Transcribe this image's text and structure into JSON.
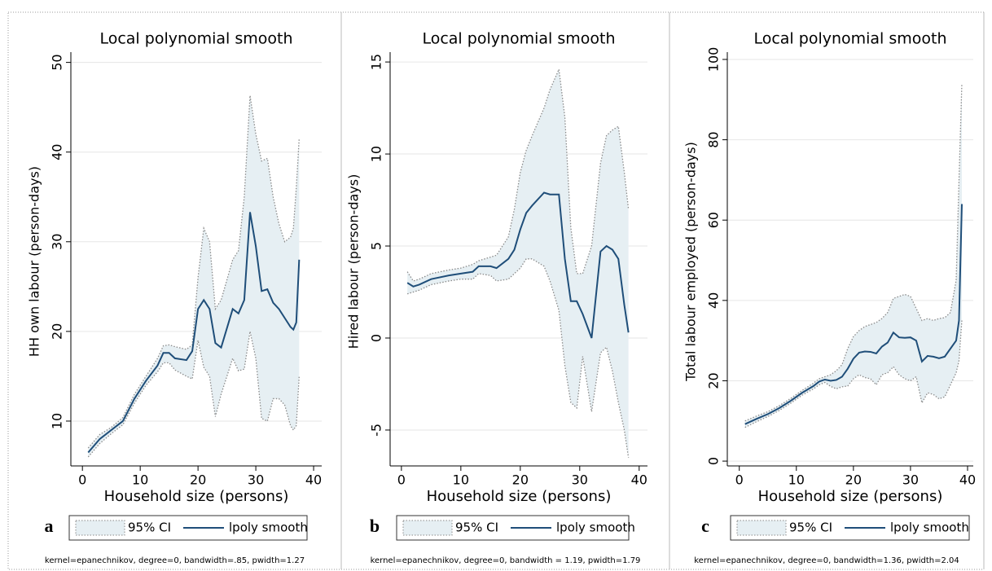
{
  "chart_data": [
    {
      "type": "line",
      "title": "Local polynomial smooth",
      "xlabel": "Household size (persons)",
      "ylabel": "HH own labour (person-days)",
      "panel_label": "a",
      "note": "kernel=epanechnikov, degree=0, bandwidth=.85, pwidth=1.27",
      "x": [
        1,
        3,
        5,
        7,
        9,
        11,
        13,
        14,
        15,
        16,
        18,
        19,
        20,
        21,
        22,
        23,
        24,
        26,
        27,
        28,
        29,
        30,
        31,
        32,
        33,
        34,
        35,
        36,
        36.5,
        37,
        37.5
      ],
      "series": [
        {
          "name": "95% CI",
          "color": "#e6eff3",
          "line_color": "#8a8a8a",
          "upper": [
            7,
            8.5,
            9.3,
            10.4,
            13,
            15,
            17,
            18.4,
            18.5,
            18.3,
            18,
            18.5,
            26,
            31.5,
            30,
            22.5,
            23.5,
            28,
            29,
            35,
            46.3,
            42,
            39,
            39.3,
            35,
            32,
            30,
            30.5,
            31.5,
            36,
            41.5
          ],
          "lower": [
            6,
            7.5,
            8.6,
            9.6,
            12,
            14,
            15.5,
            16.5,
            16.5,
            15.7,
            15,
            14.7,
            19,
            16,
            15,
            10.5,
            13,
            17,
            15.6,
            15.8,
            20,
            17,
            10.3,
            10,
            12.5,
            12.5,
            11.8,
            9.5,
            9,
            9.5,
            15
          ]
        },
        {
          "name": "lpoly smooth",
          "color": "#1f4e79",
          "values": [
            6.5,
            8,
            9,
            10,
            12.5,
            14.5,
            16.2,
            17.6,
            17.6,
            17,
            16.8,
            17.8,
            22.5,
            23.5,
            22.5,
            18.7,
            18.2,
            22.5,
            22,
            23.5,
            33.3,
            29.5,
            24.5,
            24.7,
            23.2,
            22.5,
            21.5,
            20.5,
            20.2,
            21,
            28
          ]
        }
      ],
      "xlim": [
        -2,
        41.4
      ],
      "ylim": [
        5,
        50.6
      ],
      "xticks": [
        0,
        10,
        20,
        30,
        40
      ],
      "yticks": [
        10,
        20,
        30,
        40,
        50
      ],
      "grid": true
    },
    {
      "type": "line",
      "title": "Local polynomial smooth",
      "xlabel": "Household size (persons)",
      "ylabel": "Hired labour (person-days)",
      "panel_label": "b",
      "note": "kernel=epanechnikov, degree=0, bandwidth = 1.19, pwidth=1.79",
      "x": [
        1,
        2,
        3,
        5,
        8,
        10,
        12,
        13,
        15,
        16,
        18,
        19,
        20,
        21,
        22,
        24,
        25,
        26.5,
        27.5,
        28.5,
        29.5,
        30.5,
        32,
        33.5,
        34.5,
        35.5,
        36.5,
        37.5,
        38.2
      ],
      "series": [
        {
          "name": "95% CI",
          "color": "#e6eff3",
          "line_color": "#8a8a8a",
          "upper": [
            3.6,
            3.1,
            3.2,
            3.5,
            3.7,
            3.8,
            4,
            4.2,
            4.4,
            4.5,
            5.5,
            7,
            9,
            10.2,
            11,
            12.5,
            13.5,
            14.6,
            12,
            6,
            3.5,
            3.5,
            5,
            9.5,
            11,
            11.3,
            11.5,
            9,
            7
          ],
          "lower": [
            2.4,
            2.5,
            2.6,
            2.9,
            3.1,
            3.2,
            3.2,
            3.5,
            3.4,
            3.1,
            3.2,
            3.5,
            3.8,
            4.3,
            4.3,
            3.9,
            3.1,
            1.5,
            -1.5,
            -3.5,
            -3.8,
            -1,
            -4,
            -0.8,
            -0.5,
            -1.8,
            -3.5,
            -5,
            -6.5
          ]
        },
        {
          "name": "lpoly smooth",
          "color": "#1f4e79",
          "values": [
            3,
            2.8,
            2.9,
            3.2,
            3.4,
            3.5,
            3.6,
            3.9,
            3.9,
            3.8,
            4.3,
            4.8,
            5.9,
            6.8,
            7.2,
            7.9,
            7.8,
            7.8,
            4.3,
            2,
            2,
            1.3,
            0,
            4.7,
            5,
            4.8,
            4.3,
            1.8,
            0.3
          ]
        }
      ],
      "xlim": [
        -1.9,
        41.4
      ],
      "ylim": [
        -6.95,
        15.27
      ],
      "xticks": [
        0,
        10,
        20,
        30,
        40
      ],
      "yticks": [
        -5,
        0,
        5,
        10,
        15
      ],
      "grid": true
    },
    {
      "type": "line",
      "title": "Local polynomial smooth",
      "xlabel": "Household size (persons)",
      "ylabel": "Total labour employed (person-days)",
      "panel_label": "c",
      "note": "kernel=epanechnikov, degree=0, bandwidth=1.36, pwidth=2.04",
      "x": [
        1,
        3,
        5,
        7,
        9,
        11,
        13,
        14,
        15,
        16,
        17,
        18,
        19,
        20,
        21,
        22,
        23,
        24,
        25,
        26,
        27,
        28,
        29,
        30,
        31,
        32,
        33,
        34,
        35,
        36,
        37,
        38,
        38.5,
        39
      ],
      "series": [
        {
          "name": "95% CI",
          "color": "#e6eff3",
          "line_color": "#8a8a8a",
          "upper": [
            10,
            11.2,
            12.3,
            13.8,
            15.6,
            17.6,
            19.4,
            20.5,
            21,
            21.5,
            22.5,
            24,
            28,
            31,
            32.5,
            33.5,
            34,
            34.5,
            35.5,
            37,
            40.5,
            41,
            41.5,
            41,
            38,
            35,
            35.5,
            35,
            35.5,
            35.7,
            37,
            45,
            70,
            94
          ],
          "lower": [
            8.4,
            9.8,
            11.1,
            12.6,
            14.4,
            16.4,
            18,
            19,
            19.6,
            18.6,
            18,
            18.5,
            18.7,
            20.5,
            21.5,
            20.8,
            20.5,
            19,
            21.5,
            22,
            23.5,
            21.5,
            20.5,
            20,
            21,
            14.5,
            17,
            16.6,
            15.5,
            16,
            19,
            22,
            25,
            35
          ]
        },
        {
          "name": "lpoly smooth",
          "color": "#1f4e79",
          "values": [
            9.2,
            10.5,
            11.7,
            13.2,
            15,
            17,
            18.7,
            19.8,
            20.3,
            20,
            20.2,
            21,
            23,
            25.5,
            27,
            27.3,
            27.2,
            26.8,
            28.5,
            29.5,
            32,
            30.8,
            30.7,
            30.8,
            30,
            24.8,
            26.2,
            26,
            25.6,
            26,
            28,
            30,
            35,
            64
          ]
        }
      ],
      "xlim": [
        -2.1,
        41
      ],
      "ylim": [
        -1.2,
        100.6
      ],
      "xticks": [
        0,
        10,
        20,
        30,
        40
      ],
      "yticks": [
        0,
        20,
        40,
        60,
        80,
        100
      ],
      "grid": true
    }
  ]
}
